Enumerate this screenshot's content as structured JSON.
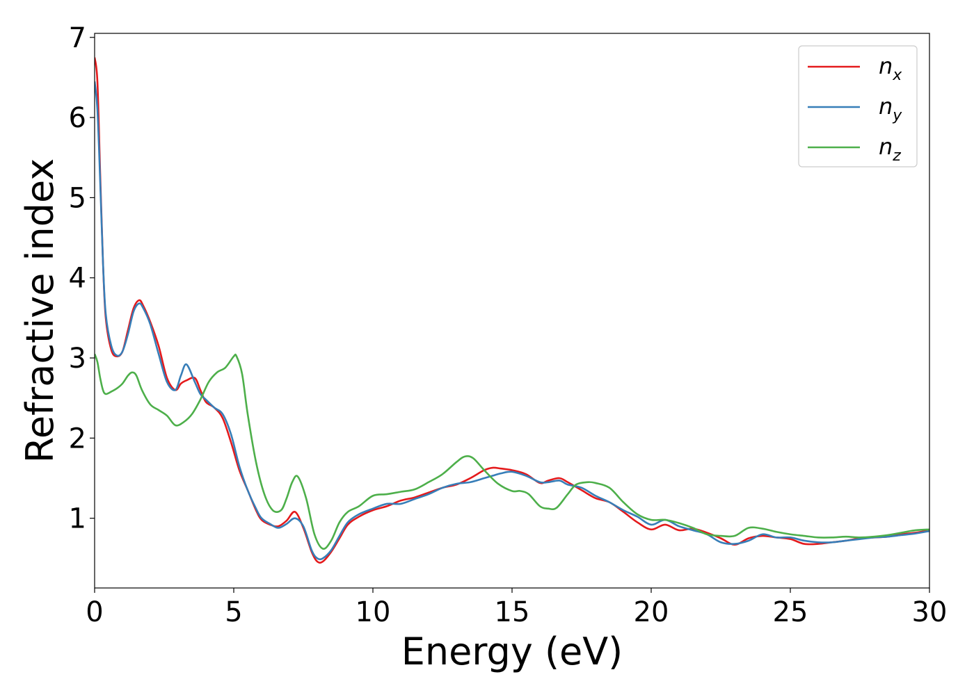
{
  "chart_data": {
    "type": "line",
    "title": "",
    "xlabel": "Energy (eV)",
    "ylabel": "Refractive index",
    "xlim": [
      0,
      30
    ],
    "ylim": [
      0.13,
      7.05
    ],
    "xticks": [
      0,
      5,
      10,
      15,
      20,
      25,
      30
    ],
    "yticks": [
      1,
      2,
      3,
      4,
      5,
      6,
      7
    ],
    "grid": false,
    "legend_position": "top-right",
    "series": [
      {
        "name": "n",
        "subscript": "x",
        "color": "#e41a1c",
        "x": [
          0,
          0.1,
          0.2,
          0.3,
          0.4,
          0.6,
          0.8,
          1.0,
          1.2,
          1.4,
          1.6,
          1.75,
          2.0,
          2.3,
          2.6,
          2.9,
          3.1,
          3.3,
          3.6,
          3.8,
          4.0,
          4.3,
          4.6,
          4.9,
          5.2,
          5.5,
          5.8,
          6.0,
          6.3,
          6.6,
          6.9,
          7.2,
          7.5,
          7.8,
          8.0,
          8.2,
          8.5,
          8.8,
          9.1,
          9.5,
          10.0,
          10.5,
          11.0,
          11.5,
          12.0,
          12.5,
          13.0,
          13.5,
          14.0,
          14.3,
          14.6,
          15.0,
          15.5,
          16.0,
          16.3,
          16.7,
          17.0,
          17.5,
          18.0,
          18.5,
          19.0,
          19.5,
          20.0,
          20.5,
          21.0,
          21.5,
          22.0,
          22.5,
          23.0,
          23.5,
          24.0,
          24.5,
          25.0,
          25.5,
          26.0,
          26.5,
          27.0,
          27.5,
          28.0,
          28.5,
          29.0,
          29.5,
          30.0
        ],
        "values": [
          6.75,
          6.45,
          5.3,
          4.2,
          3.5,
          3.1,
          3.02,
          3.08,
          3.35,
          3.62,
          3.72,
          3.65,
          3.45,
          3.15,
          2.75,
          2.6,
          2.68,
          2.72,
          2.75,
          2.6,
          2.45,
          2.38,
          2.25,
          1.95,
          1.6,
          1.35,
          1.1,
          0.98,
          0.92,
          0.9,
          0.97,
          1.08,
          0.88,
          0.58,
          0.46,
          0.46,
          0.58,
          0.75,
          0.92,
          1.02,
          1.1,
          1.15,
          1.22,
          1.26,
          1.32,
          1.38,
          1.42,
          1.5,
          1.6,
          1.63,
          1.62,
          1.6,
          1.55,
          1.44,
          1.47,
          1.5,
          1.45,
          1.35,
          1.25,
          1.2,
          1.08,
          0.95,
          0.86,
          0.92,
          0.85,
          0.87,
          0.82,
          0.75,
          0.67,
          0.75,
          0.78,
          0.76,
          0.74,
          0.68,
          0.68,
          0.7,
          0.72,
          0.75,
          0.76,
          0.77,
          0.8,
          0.82,
          0.85
        ]
      },
      {
        "name": "n",
        "subscript": "y",
        "color": "#377eb8",
        "x": [
          0,
          0.1,
          0.2,
          0.3,
          0.4,
          0.6,
          0.8,
          1.0,
          1.2,
          1.4,
          1.6,
          1.75,
          2.0,
          2.3,
          2.6,
          2.9,
          3.1,
          3.3,
          3.6,
          3.8,
          4.0,
          4.3,
          4.6,
          4.9,
          5.2,
          5.5,
          5.8,
          6.0,
          6.3,
          6.6,
          6.9,
          7.2,
          7.5,
          7.8,
          8.0,
          8.2,
          8.5,
          8.8,
          9.1,
          9.5,
          10.0,
          10.5,
          11.0,
          11.5,
          12.0,
          12.5,
          13.0,
          13.5,
          14.0,
          14.3,
          14.6,
          15.0,
          15.5,
          16.0,
          16.3,
          16.7,
          17.0,
          17.5,
          18.0,
          18.5,
          19.0,
          19.5,
          20.0,
          20.5,
          21.0,
          21.5,
          22.0,
          22.5,
          23.0,
          23.5,
          24.0,
          24.5,
          25.0,
          25.5,
          26.0,
          26.5,
          27.0,
          27.5,
          28.0,
          28.5,
          29.0,
          29.5,
          30.0
        ],
        "values": [
          6.45,
          6.1,
          5.2,
          4.2,
          3.55,
          3.15,
          3.03,
          3.08,
          3.3,
          3.58,
          3.68,
          3.62,
          3.42,
          3.05,
          2.7,
          2.6,
          2.78,
          2.92,
          2.7,
          2.55,
          2.48,
          2.38,
          2.3,
          2.05,
          1.65,
          1.35,
          1.12,
          1.0,
          0.93,
          0.88,
          0.93,
          1.0,
          0.9,
          0.6,
          0.5,
          0.5,
          0.6,
          0.78,
          0.95,
          1.05,
          1.12,
          1.18,
          1.18,
          1.24,
          1.3,
          1.38,
          1.43,
          1.45,
          1.5,
          1.53,
          1.56,
          1.58,
          1.53,
          1.45,
          1.45,
          1.47,
          1.42,
          1.38,
          1.28,
          1.2,
          1.1,
          1.02,
          0.92,
          0.98,
          0.9,
          0.85,
          0.8,
          0.7,
          0.68,
          0.72,
          0.8,
          0.76,
          0.76,
          0.72,
          0.7,
          0.7,
          0.72,
          0.74,
          0.76,
          0.77,
          0.79,
          0.81,
          0.84
        ]
      },
      {
        "name": "n",
        "subscript": "z",
        "color": "#4daf4a",
        "x": [
          0,
          0.1,
          0.2,
          0.3,
          0.4,
          0.6,
          0.8,
          1.0,
          1.2,
          1.35,
          1.5,
          1.7,
          2.0,
          2.3,
          2.6,
          2.9,
          3.2,
          3.5,
          3.8,
          4.1,
          4.4,
          4.7,
          5.0,
          5.1,
          5.3,
          5.5,
          5.8,
          6.1,
          6.4,
          6.7,
          6.9,
          7.1,
          7.3,
          7.6,
          7.9,
          8.2,
          8.5,
          8.8,
          9.1,
          9.5,
          10.0,
          10.5,
          11.0,
          11.5,
          12.0,
          12.5,
          13.0,
          13.3,
          13.6,
          14.0,
          14.5,
          15.0,
          15.3,
          15.6,
          16.0,
          16.3,
          16.6,
          17.0,
          17.3,
          17.7,
          18.0,
          18.5,
          19.0,
          19.5,
          20.0,
          20.5,
          21.0,
          21.5,
          22.0,
          22.5,
          23.0,
          23.5,
          24.0,
          24.5,
          25.0,
          25.5,
          26.0,
          26.5,
          27.0,
          27.5,
          28.0,
          28.5,
          29.0,
          29.5,
          30.0
        ],
        "values": [
          3.05,
          2.95,
          2.75,
          2.6,
          2.55,
          2.58,
          2.62,
          2.68,
          2.78,
          2.82,
          2.78,
          2.6,
          2.42,
          2.35,
          2.28,
          2.16,
          2.2,
          2.3,
          2.48,
          2.7,
          2.82,
          2.88,
          3.02,
          3.02,
          2.8,
          2.3,
          1.7,
          1.3,
          1.1,
          1.1,
          1.25,
          1.45,
          1.52,
          1.25,
          0.8,
          0.62,
          0.72,
          0.95,
          1.08,
          1.15,
          1.28,
          1.3,
          1.33,
          1.36,
          1.45,
          1.55,
          1.7,
          1.77,
          1.75,
          1.6,
          1.43,
          1.34,
          1.34,
          1.3,
          1.15,
          1.12,
          1.13,
          1.3,
          1.42,
          1.45,
          1.44,
          1.38,
          1.2,
          1.05,
          0.98,
          0.98,
          0.94,
          0.88,
          0.8,
          0.78,
          0.78,
          0.88,
          0.87,
          0.83,
          0.8,
          0.78,
          0.76,
          0.76,
          0.77,
          0.76,
          0.77,
          0.79,
          0.82,
          0.85,
          0.86
        ]
      }
    ]
  }
}
